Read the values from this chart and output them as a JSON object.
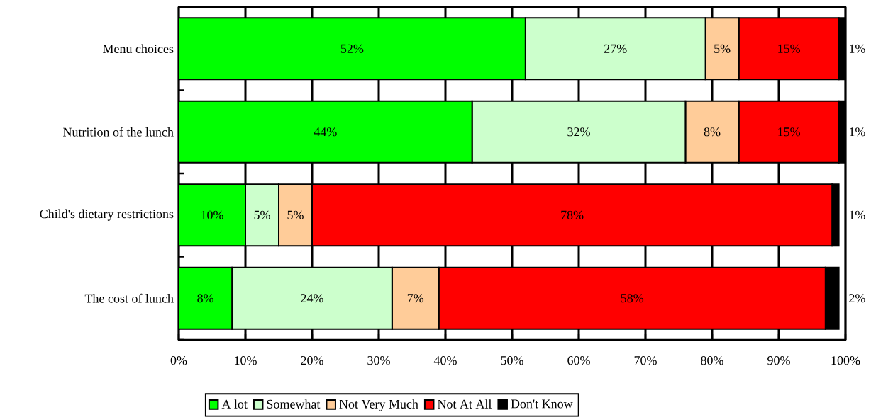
{
  "chart_data": {
    "type": "bar",
    "orientation": "horizontal",
    "stacked": true,
    "categories": [
      "Menu choices",
      "Nutrition of the lunch",
      "Child's dietary restrictions",
      "The cost of lunch"
    ],
    "series": [
      {
        "name": "A lot",
        "color": "#00ff00",
        "values": [
          52,
          44,
          10,
          8
        ],
        "value_labels": [
          "52%",
          "44%",
          "10%",
          "8%"
        ]
      },
      {
        "name": "Somewhat",
        "color": "#ccffcc",
        "values": [
          27,
          32,
          5,
          24
        ],
        "value_labels": [
          "27%",
          "32%",
          "5%",
          "24%"
        ]
      },
      {
        "name": "Not Very Much",
        "color": "#ffcc99",
        "values": [
          5,
          8,
          5,
          7
        ],
        "value_labels": [
          "5%",
          "8%",
          "5%",
          "7%"
        ]
      },
      {
        "name": "Not At All",
        "color": "#ff0000",
        "values": [
          15,
          15,
          78,
          58
        ],
        "value_labels": [
          "15%",
          "15%",
          "78%",
          "58%"
        ]
      },
      {
        "name": "Don't Know",
        "color": "#000000",
        "values": [
          1,
          1,
          1,
          2
        ],
        "value_labels": [
          "1%",
          "1%",
          "1%",
          "2%"
        ]
      }
    ],
    "xlim": [
      0,
      100
    ],
    "xticks": [
      {
        "value": 0,
        "label": "0%"
      },
      {
        "value": 10,
        "label": "10%"
      },
      {
        "value": 20,
        "label": "20%"
      },
      {
        "value": 30,
        "label": "30%"
      },
      {
        "value": 40,
        "label": "40%"
      },
      {
        "value": 50,
        "label": "50%"
      },
      {
        "value": 60,
        "label": "60%"
      },
      {
        "value": 70,
        "label": "70%"
      },
      {
        "value": 80,
        "label": "80%"
      },
      {
        "value": 90,
        "label": "90%"
      },
      {
        "value": 100,
        "label": "100%"
      }
    ],
    "grid": "x",
    "legend": "bottom"
  }
}
